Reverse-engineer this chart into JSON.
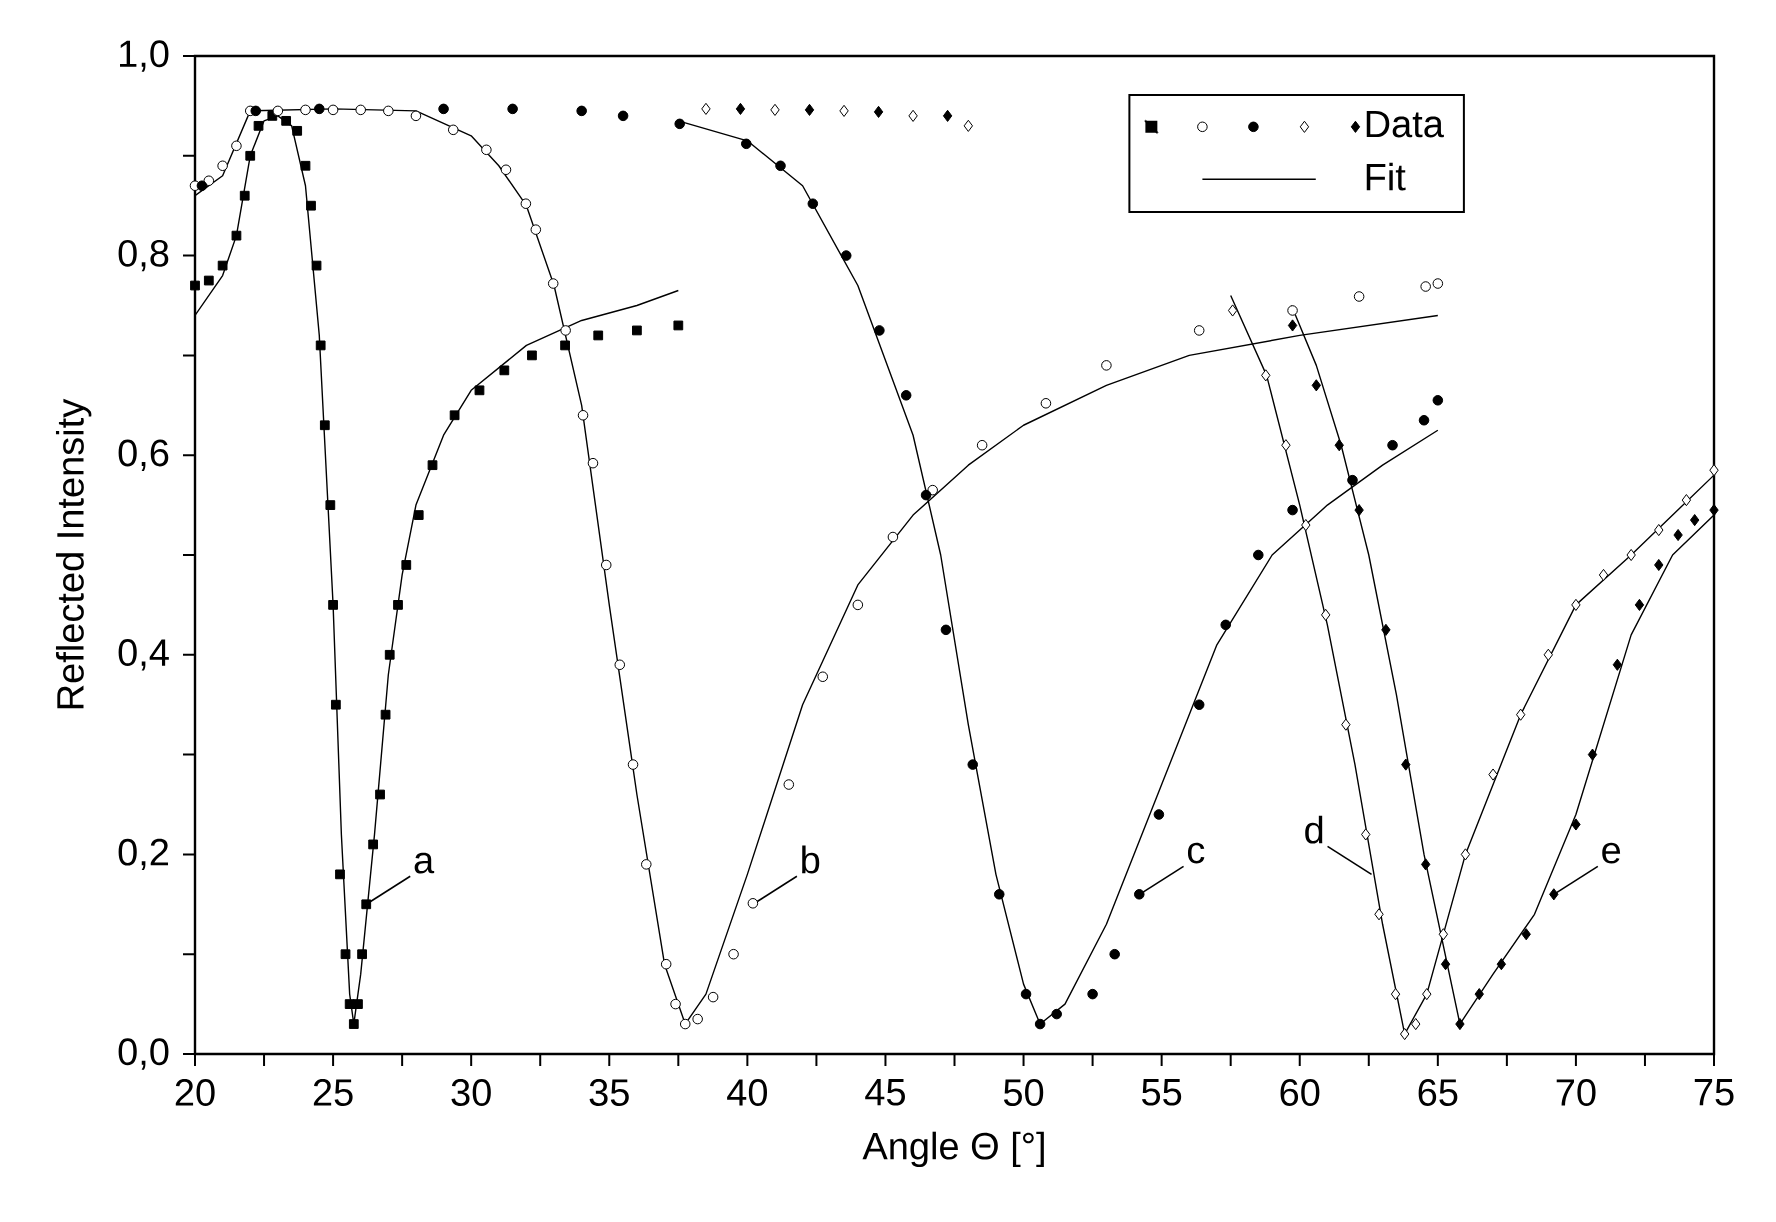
{
  "chart_data": {
    "type": "scatter",
    "xlabel": "Angle Θ [°]",
    "ylabel": "Reflected Intensity",
    "xlim": [
      20,
      75
    ],
    "ylim": [
      0,
      1.0
    ],
    "xticks": [
      20,
      {
        "value": 22.5,
        "label": null
      },
      25,
      {
        "value": 27.5,
        "label": null
      },
      30,
      {
        "value": 32.5,
        "label": null
      },
      35,
      {
        "value": 37.5,
        "label": null
      },
      40,
      {
        "value": 42.5,
        "label": null
      },
      45,
      {
        "value": 47.5,
        "label": null
      },
      50,
      {
        "value": 52.5,
        "label": null
      },
      55,
      {
        "value": 57.5,
        "label": null
      },
      60,
      {
        "value": 62.5,
        "label": null
      },
      65,
      {
        "value": 67.5,
        "label": null
      },
      70,
      {
        "value": 72.5,
        "label": null
      },
      75
    ],
    "yticks": [
      {
        "value": 0,
        "label": "0,0"
      },
      {
        "value": 0.1,
        "label": null
      },
      {
        "value": 0.2,
        "label": "0,2"
      },
      {
        "value": 0.3,
        "label": null
      },
      {
        "value": 0.4,
        "label": "0,4"
      },
      {
        "value": 0.5,
        "label": null
      },
      {
        "value": 0.6,
        "label": "0,6"
      },
      {
        "value": 0.7,
        "label": null
      },
      {
        "value": 0.8,
        "label": "0,8"
      },
      {
        "value": 0.9,
        "label": null
      },
      {
        "value": 1.0,
        "label": "1,0"
      }
    ],
    "legend": "top right",
    "series": [
      {
        "marker": "square",
        "color": "#000000",
        "x": [
          20,
          20.5,
          21,
          21.5,
          21.8,
          22.0,
          22.3,
          22.8,
          23.3,
          23.7,
          24.0,
          24.2,
          24.4,
          24.55,
          24.7,
          24.9,
          25.0,
          25.1,
          25.25,
          25.45,
          25.6,
          25.75,
          25.9,
          26.05,
          26.2,
          26.45,
          26.7,
          26.9,
          27.05,
          27.35,
          27.65,
          28.1,
          28.6,
          29.4,
          30.3,
          31.2,
          32.2,
          33.4,
          34.6,
          36,
          37.5
        ],
        "values": [
          0.77,
          0.775,
          0.79,
          0.82,
          0.86,
          0.9,
          0.93,
          0.94,
          0.935,
          0.925,
          0.89,
          0.85,
          0.79,
          0.71,
          0.63,
          0.55,
          0.45,
          0.35,
          0.18,
          0.1,
          0.05,
          0.03,
          0.05,
          0.1,
          0.15,
          0.21,
          0.26,
          0.34,
          0.4,
          0.45,
          0.49,
          0.54,
          0.59,
          0.64,
          0.665,
          0.685,
          0.7,
          0.71,
          0.72,
          0.725,
          0.73
        ]
      },
      {
        "marker": "circle",
        "color": "#ffffff",
        "x": [
          20,
          20.5,
          21,
          21.5,
          22,
          23,
          24,
          25,
          26,
          27,
          28,
          29.35,
          30.55,
          31.26,
          31.98,
          32.34,
          32.97,
          33.42,
          34.05,
          34.41,
          34.89,
          35.38,
          35.86,
          36.34,
          37.06,
          37.4,
          37.75,
          38.2,
          38.76,
          39.5,
          40.2,
          41.5,
          42.73,
          44,
          45.27,
          46.71,
          48.5,
          50.81,
          53,
          56.36,
          59.74,
          62.15,
          64.56,
          65
        ],
        "values": [
          0.87,
          0.875,
          0.89,
          0.91,
          0.945,
          0.945,
          0.946,
          0.946,
          0.946,
          0.945,
          0.94,
          0.926,
          0.906,
          0.886,
          0.852,
          0.826,
          0.772,
          0.725,
          0.64,
          0.592,
          0.49,
          0.39,
          0.29,
          0.19,
          0.09,
          0.05,
          0.03,
          0.035,
          0.057,
          0.1,
          0.151,
          0.27,
          0.378,
          0.45,
          0.518,
          0.565,
          0.61,
          0.652,
          0.69,
          0.725,
          0.745,
          0.759,
          0.769,
          0.772
        ]
      },
      {
        "marker": "circle",
        "color": "#000000",
        "x": [
          20.25,
          21.2,
          22.2,
          24.5,
          29,
          31.5,
          34,
          35.5,
          37.55,
          39.96,
          41.2,
          42.37,
          43.58,
          44.78,
          45.75,
          46.47,
          47.19,
          48.16,
          49.12,
          50.09,
          50.6,
          51.2,
          52.5,
          53.3,
          54.19,
          54.9,
          56.36,
          57.32,
          58.5,
          59.74,
          61.91,
          63.36,
          64.5,
          65
        ],
        "values": [
          0.87,
          null,
          0.945,
          0.947,
          0.947,
          0.947,
          0.945,
          0.94,
          0.932,
          0.912,
          0.89,
          0.852,
          0.8,
          0.725,
          0.66,
          0.56,
          0.425,
          0.29,
          0.16,
          0.06,
          0.03,
          0.04,
          0.06,
          0.1,
          0.16,
          0.24,
          0.35,
          0.43,
          0.5,
          0.545,
          0.575,
          0.61,
          0.635,
          0.655
        ]
      },
      {
        "marker": "diamond",
        "color": "#ffffff",
        "x": [
          38.5,
          41,
          43.5,
          46,
          48,
          50,
          52,
          53.5,
          55,
          56.5,
          57.57,
          58.77,
          59.5,
          60.22,
          60.94,
          61.67,
          62.39,
          62.87,
          63.47,
          63.8,
          64.2,
          64.6,
          65.2,
          66,
          67,
          68,
          69,
          70,
          71,
          72,
          73,
          74,
          75
        ],
        "values": [
          0.947,
          0.946,
          0.945,
          0.94,
          0.93,
          null,
          null,
          null,
          null,
          null,
          0.745,
          0.68,
          0.61,
          0.53,
          0.44,
          0.33,
          0.22,
          0.14,
          0.06,
          0.02,
          0.03,
          0.06,
          0.12,
          0.2,
          0.28,
          0.34,
          0.4,
          0.45,
          0.48,
          0.5,
          0.525,
          0.555,
          0.585
        ]
      },
      {
        "name": "Data",
        "marker": "diamond",
        "color": "#000000",
        "x": [
          39.75,
          42.25,
          44.75,
          47.25,
          50,
          53,
          55,
          57,
          58.5,
          59.74,
          60.6,
          61.43,
          62.15,
          63.12,
          63.84,
          64.56,
          65.28,
          65.8,
          66.5,
          67.3,
          68.2,
          69.2,
          70,
          70.6,
          71.5,
          72.3,
          73,
          73.7,
          74.3,
          75
        ],
        "values": [
          0.947,
          0.946,
          0.944,
          0.94,
          null,
          null,
          null,
          null,
          null,
          0.73,
          0.67,
          0.61,
          0.545,
          0.425,
          0.29,
          0.19,
          0.09,
          0.03,
          0.06,
          0.09,
          0.12,
          0.16,
          0.23,
          0.3,
          0.39,
          0.45,
          0.49,
          0.52,
          0.535,
          0.545
        ]
      },
      {
        "name": "Fit",
        "type": "line",
        "marker": "none",
        "color": "#000000",
        "x": [
          20,
          21,
          21.5,
          22,
          22.5,
          23,
          23.5,
          24,
          24.5,
          25,
          25.3,
          25.6,
          25.75,
          26,
          26.5,
          27,
          27.5,
          28,
          29,
          30,
          32,
          34,
          36,
          37.5
        ],
        "values": [
          0.74,
          0.78,
          0.82,
          0.9,
          0.935,
          0.94,
          0.93,
          0.87,
          0.72,
          0.45,
          0.22,
          0.06,
          0.03,
          0.08,
          0.22,
          0.38,
          0.48,
          0.55,
          0.62,
          0.665,
          0.71,
          0.735,
          0.75,
          0.765
        ]
      },
      {
        "type": "line",
        "marker": "none",
        "color": "#000000",
        "x": [
          20,
          21,
          22,
          25,
          28,
          30,
          31,
          32,
          33,
          34,
          35,
          36,
          37,
          37.75,
          38.5,
          40,
          42,
          44,
          46,
          48,
          50,
          53,
          56,
          60,
          65
        ],
        "values": [
          0.86,
          0.88,
          0.945,
          0.947,
          0.945,
          0.92,
          0.89,
          0.85,
          0.77,
          0.65,
          0.45,
          0.26,
          0.09,
          0.03,
          0.06,
          0.18,
          0.35,
          0.47,
          0.54,
          0.59,
          0.63,
          0.67,
          0.7,
          0.72,
          0.74
        ]
      },
      {
        "type": "line",
        "marker": "none",
        "color": "#000000",
        "x": [
          37.5,
          40,
          42,
          44,
          46,
          47,
          48,
          49,
          50,
          50.6,
          51.5,
          53,
          55,
          57,
          59,
          61,
          63,
          65
        ],
        "values": [
          0.935,
          0.915,
          0.87,
          0.77,
          0.62,
          0.5,
          0.33,
          0.18,
          0.07,
          0.03,
          0.05,
          0.13,
          0.27,
          0.41,
          0.5,
          0.55,
          0.59,
          0.625
        ]
      },
      {
        "type": "line",
        "marker": "none",
        "color": "#000000",
        "x": [
          57.5,
          58.8,
          60,
          61,
          62,
          63,
          63.8,
          64.6,
          66,
          68,
          70,
          72,
          75
        ],
        "values": [
          0.76,
          0.68,
          0.55,
          0.43,
          0.29,
          0.13,
          0.02,
          0.06,
          0.2,
          0.34,
          0.45,
          0.5,
          0.58
        ]
      },
      {
        "type": "line",
        "marker": "none",
        "color": "#000000",
        "x": [
          59.7,
          60.6,
          61.5,
          62.5,
          63.5,
          64.5,
          65.8,
          67,
          68.5,
          70,
          72,
          73.5,
          75
        ],
        "values": [
          0.75,
          0.69,
          0.61,
          0.5,
          0.36,
          0.2,
          0.03,
          0.08,
          0.14,
          0.24,
          0.42,
          0.5,
          0.54
        ]
      }
    ],
    "annotations": [
      {
        "text": "a",
        "x": 26.2,
        "y": 0.15
      },
      {
        "text": "b",
        "x": 40.2,
        "y": 0.15
      },
      {
        "text": "c",
        "x": 54.2,
        "y": 0.16
      },
      {
        "text": "d",
        "x": 62.6,
        "y": 0.18
      },
      {
        "text": "e",
        "x": 69.2,
        "y": 0.16
      }
    ]
  }
}
